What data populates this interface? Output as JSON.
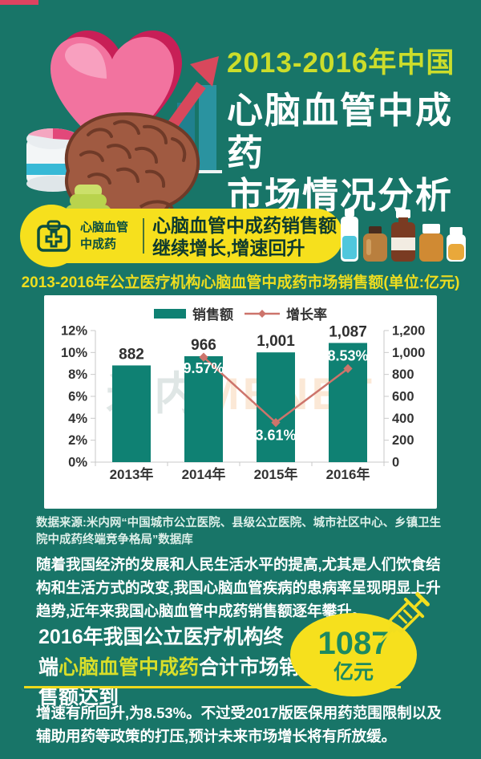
{
  "colors": {
    "background": "#187568",
    "banner_yellow": "#f6e01d",
    "title_yellowgreen": "#ccdd2b",
    "bar_teal": "#0f8173",
    "line_salmon": "#cd746b",
    "dark_green_text": "#0c4f40",
    "circle_value_green": "#1d8a60",
    "chart_title_yellow": "#eedd1f"
  },
  "header": {
    "title_line1": "2013-2016年中国",
    "title_line2": "心脑血管中成药",
    "title_line3": "市场情况分析"
  },
  "banner": {
    "badge_line1": "心脑血管",
    "badge_line2": "中成药",
    "headline_line1": "心脑血管中成药销售额",
    "headline_line2": "继续增长,增速回升"
  },
  "chart": {
    "title": "2013-2016年公立医疗机构心脑血管中成药市场销售额(单位:亿元)",
    "watermark_part1": "米内",
    "watermark_part2": "MENET"
  },
  "chart_data": {
    "type": "bar",
    "categories": [
      "2013年",
      "2014年",
      "2015年",
      "2016年"
    ],
    "series": [
      {
        "name": "销售额",
        "type": "bar",
        "axis": "right",
        "color": "#0f8173",
        "values": [
          882,
          966,
          1001,
          1087
        ],
        "labels": [
          "882",
          "966",
          "1,001",
          "1,087"
        ]
      },
      {
        "name": "增长率",
        "type": "line",
        "axis": "left",
        "color": "#cd746b",
        "values": [
          null,
          9.57,
          3.61,
          8.53
        ],
        "labels": [
          null,
          "9.57%",
          "3.61%",
          "8.53%"
        ]
      }
    ],
    "left_axis": {
      "min": 0,
      "max": 12,
      "step": 2,
      "ticks": [
        "0%",
        "2%",
        "4%",
        "6%",
        "8%",
        "10%",
        "12%"
      ]
    },
    "right_axis": {
      "min": 0,
      "max": 1200,
      "step": 200,
      "ticks": [
        "0",
        "200",
        "400",
        "600",
        "800",
        "1,000",
        "1,200"
      ]
    },
    "pct_label_dy": [
      0,
      20,
      22,
      -10
    ],
    "grid": false,
    "legend_position": "top"
  },
  "source": {
    "text": "数据来源:米内网“中国城市公立医院、县级公立医院、城市社区中心、乡镇卫生院中成药终端竞争格局”数据库"
  },
  "body_text": {
    "paragraph": "随着我国经济的发展和人民生活水平的提高,尤其是人们饮食结构和生活方式的改变,我国心脑血管疾病的患病率呈现明显上升趋势,近年来我国心脑血管中成药销售额逐年攀升。"
  },
  "stat": {
    "pre": "2016年我国公立医疗机构终端",
    "highlight": "心脑血管中成药",
    "post": "合计市场销售额达到",
    "value": "1087",
    "unit": "亿元"
  },
  "footer_text": {
    "paragraph": "增速有所回升,为8.53%。不过受2017版医保用药范围限制以及辅助用药等政策的打压,预计未来市场增长将有所放缓。"
  }
}
